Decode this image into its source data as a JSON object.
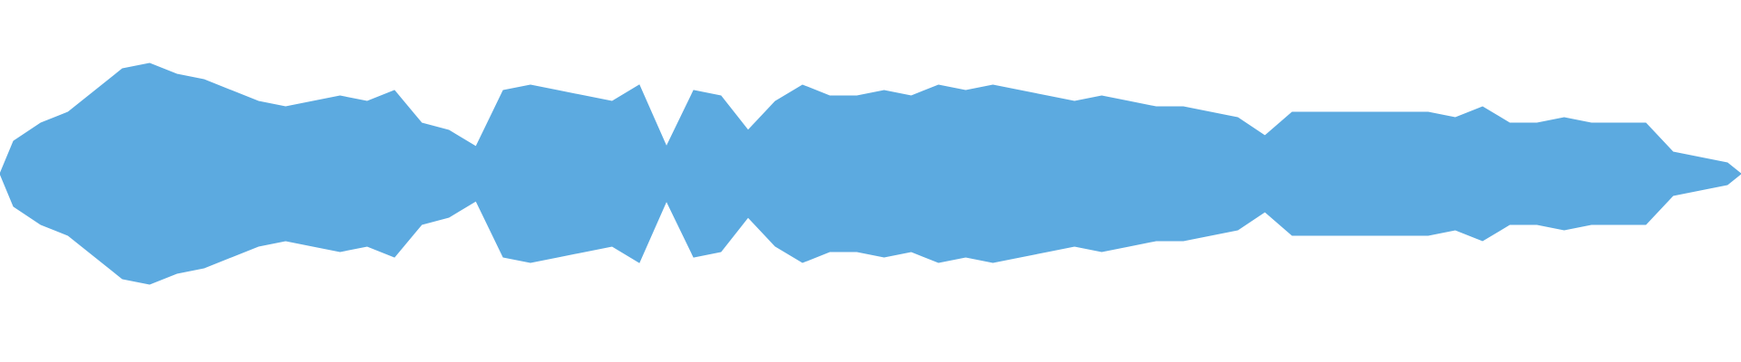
{
  "waveform": {
    "color": "#5caae0",
    "amplitude": [
      0.18,
      0.28,
      0.34,
      0.46,
      0.58,
      0.61,
      0.55,
      0.52,
      0.46,
      0.4,
      0.37,
      0.4,
      0.43,
      0.4,
      0.46,
      0.28,
      0.24,
      0.15,
      0.46,
      0.49,
      0.46,
      0.43,
      0.4,
      0.49,
      0.15,
      0.46,
      0.43,
      0.24,
      0.4,
      0.49,
      0.43,
      0.43,
      0.46,
      0.43,
      0.49,
      0.46,
      0.49,
      0.46,
      0.43,
      0.4,
      0.43,
      0.4,
      0.37,
      0.37,
      0.34,
      0.31,
      0.21,
      0.34,
      0.34,
      0.34,
      0.34,
      0.34,
      0.34,
      0.31,
      0.37,
      0.28,
      0.28,
      0.31,
      0.28,
      0.28,
      0.28,
      0.12,
      0.09,
      0.06
    ]
  }
}
